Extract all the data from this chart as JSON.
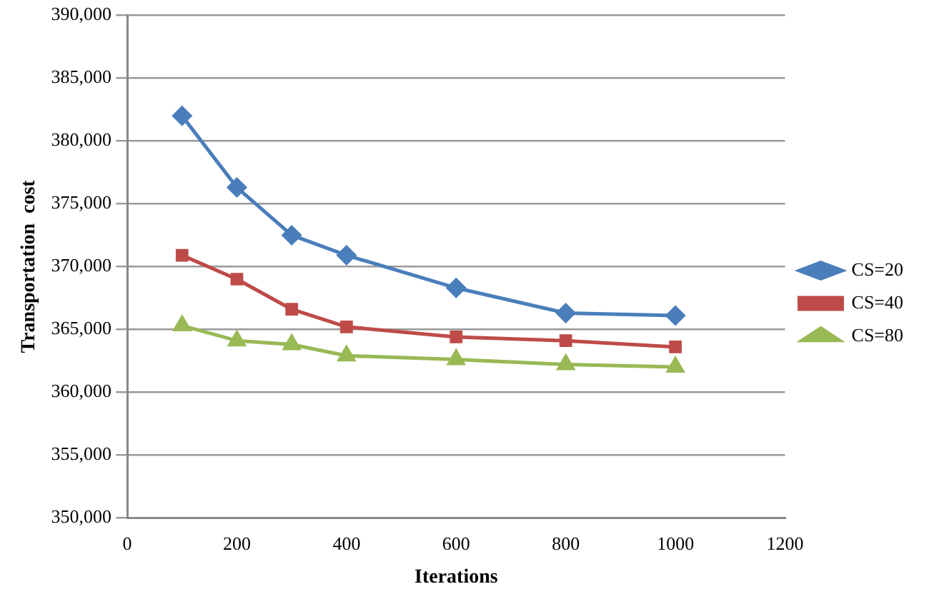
{
  "chart_data": {
    "type": "line",
    "xlabel": "Iterations",
    "ylabel": "Transportation  cost",
    "x": [
      100,
      200,
      300,
      400,
      600,
      800,
      1000
    ],
    "series": [
      {
        "name": "CS=20",
        "color": "#4a7ebb",
        "marker": "diamond",
        "values": [
          382000,
          376300,
          372500,
          370900,
          368300,
          366300,
          366100
        ]
      },
      {
        "name": "CS=40",
        "color": "#be4b48",
        "marker": "square",
        "values": [
          370900,
          369000,
          366600,
          365200,
          364400,
          364100,
          363600
        ]
      },
      {
        "name": "CS=80",
        "color": "#98b954",
        "marker": "triangle",
        "values": [
          365300,
          364100,
          363800,
          362900,
          362600,
          362200,
          362000
        ]
      }
    ],
    "xlim": [
      0,
      1200
    ],
    "xticks": [
      0,
      200,
      400,
      600,
      800,
      1000,
      1200
    ],
    "ylim": [
      350000,
      390000
    ],
    "yticks": [
      {
        "value": 350000,
        "label": "350,000"
      },
      {
        "value": 355000,
        "label": "355,000"
      },
      {
        "value": 360000,
        "label": "360,000"
      },
      {
        "value": 365000,
        "label": "365,000"
      },
      {
        "value": 370000,
        "label": "370,000"
      },
      {
        "value": 375000,
        "label": "375,000"
      },
      {
        "value": 380000,
        "label": "380,000"
      },
      {
        "value": 385000,
        "label": "385,000"
      },
      {
        "value": 390000,
        "label": "390,000"
      }
    ],
    "grid": "y",
    "legend": "right",
    "line_style": "solid"
  }
}
